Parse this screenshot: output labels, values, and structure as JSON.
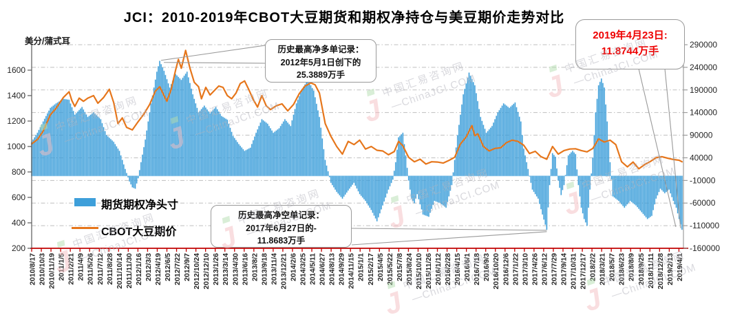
{
  "title": "JCI：2010-2019年CBOT大豆期货和期权净持仓与美豆期价走势对比",
  "axis_unit_label": "美分/蒲式耳",
  "legend": {
    "bars_label": "期货期权净头寸",
    "line_label": "CBOT大豆期价"
  },
  "annotations": {
    "record_long": {
      "line1": "历史最高净多单记录：",
      "line2": "2012年5月1日创下的",
      "line3": "25.3889万手"
    },
    "record_short": {
      "line1": "历史最高净空单记录：",
      "line2": "2017年6月27日的-",
      "line3": "11.8683万手"
    },
    "latest": {
      "line1": "2019年4月23日:",
      "line2": "11.8744万手"
    }
  },
  "watermark": {
    "logo": "J",
    "cn": "中国汇易咨询网",
    "en": "—ChinaJCI.COM"
  },
  "colors": {
    "bar": "#3E9FDA",
    "bar_glow": "rgba(62,159,218,0.32)",
    "line": "#E6761B",
    "grid": "#BFBFBF",
    "axis": "#595959",
    "x_axis_red": "#C00000",
    "tick_text": "#262626",
    "annotation_red": "#EE0000",
    "watermark_gray": "#B3B3BC",
    "watermark_pink": "#F5BFC2",
    "watermark_green": "#B5DEB0"
  },
  "chart_data": {
    "type": "bar+line",
    "title": "JCI：2010-2019年CBOT大豆期货和期权净持仓与美豆期价走势对比",
    "start_date": "2010/8/17",
    "end_date": "2019/4/23",
    "span_days": 3171,
    "x_tick_labels": [
      "2010/8/17",
      "2010/10/3",
      "2010/11/19",
      "2011/1/5",
      "2011/2/21",
      "2011/4/9",
      "2011/5/26",
      "2011/7/12",
      "2011/8/28",
      "2011/10/14",
      "2011/11/30",
      "2012/1/16",
      "2012/3/3",
      "2012/4/19",
      "2012/6/5",
      "2012/7/22",
      "2012/9/7",
      "2012/10/24",
      "2012/12/10",
      "2013/1/26",
      "2013/3/14",
      "2013/4/30",
      "2013/6/16",
      "2013/8/2",
      "2013/9/18",
      "2013/11/4",
      "2013/12/21",
      "2014/2/6",
      "2014/3/25",
      "2014/5/11",
      "2014/6/27",
      "2014/8/13",
      "2014/9/29",
      "2014/11/15",
      "2015/1/1",
      "2015/2/17",
      "2015/4/5",
      "2015/5/22",
      "2015/7/8",
      "2015/8/24",
      "2015/10/10",
      "2015/11/26",
      "2016/1/12",
      "2016/2/28",
      "2016/4/15",
      "2016/6/1",
      "2016/7/18",
      "2016/9/3",
      "2016/10/20",
      "2016/12/6",
      "2017/1/22",
      "2017/3/10",
      "2017/4/26",
      "2017/6/12",
      "2017/7/29",
      "2017/9/14",
      "2017/10/31",
      "2017/12/17",
      "2018/2/2",
      "2018/3/21",
      "2018/5/7",
      "2018/6/23",
      "2018/8/9",
      "2018/9/25",
      "2018/11/11",
      "2018/12/28",
      "2019/2/13",
      "2019/4/1"
    ],
    "x_tick_interval_days": 47,
    "left_axis": {
      "label": "美分/蒲式耳",
      "ticks": [
        1600,
        1400,
        1200,
        1000,
        800,
        600,
        400,
        200
      ],
      "range": [
        200,
        1800
      ]
    },
    "right_axis": {
      "ticks": [
        290000,
        240000,
        190000,
        140000,
        90000,
        40000,
        -10000,
        -60000,
        -110000,
        -160000
      ],
      "range": [
        -160000,
        290000
      ]
    },
    "records": {
      "max_net_long": {
        "date": "2012/5/1",
        "value": 253889,
        "label_wan": "25.3889万手"
      },
      "max_net_short": {
        "date": "2017/6/27",
        "value": -118683,
        "label_wan": "11.8683万手"
      },
      "latest": {
        "date": "2019/4/23",
        "value": -118744,
        "label_wan": "11.8744万手"
      }
    },
    "series": [
      {
        "name": "期货期权净头寸",
        "type": "bar",
        "axis": "right",
        "unit": "手(contracts)",
        "anchors_week_value": [
          [
            0,
            75000
          ],
          [
            4,
            95000
          ],
          [
            8,
            120000
          ],
          [
            13,
            150000
          ],
          [
            17,
            160000
          ],
          [
            22,
            170000
          ],
          [
            26,
            168000
          ],
          [
            30,
            135000
          ],
          [
            35,
            152000
          ],
          [
            39,
            130000
          ],
          [
            43,
            140000
          ],
          [
            48,
            125000
          ],
          [
            52,
            90000
          ],
          [
            57,
            75000
          ],
          [
            61,
            55000
          ],
          [
            65,
            15000
          ],
          [
            68,
            -12000
          ],
          [
            70,
            -25000
          ],
          [
            72,
            -28000
          ],
          [
            74,
            -5000
          ],
          [
            76,
            30000
          ],
          [
            79,
            80000
          ],
          [
            83,
            160000
          ],
          [
            87,
            230000
          ],
          [
            89,
            253889
          ],
          [
            92,
            232000
          ],
          [
            96,
            195000
          ],
          [
            100,
            225000
          ],
          [
            104,
            212000
          ],
          [
            108,
            230000
          ],
          [
            112,
            180000
          ],
          [
            116,
            140000
          ],
          [
            120,
            155000
          ],
          [
            124,
            138000
          ],
          [
            128,
            152000
          ],
          [
            132,
            132000
          ],
          [
            136,
            124000
          ],
          [
            140,
            88000
          ],
          [
            144,
            70000
          ],
          [
            148,
            55000
          ],
          [
            152,
            62000
          ],
          [
            156,
            95000
          ],
          [
            160,
            125000
          ],
          [
            164,
            115000
          ],
          [
            168,
            95000
          ],
          [
            172,
            105000
          ],
          [
            176,
            125000
          ],
          [
            180,
            110000
          ],
          [
            184,
            160000
          ],
          [
            188,
            192000
          ],
          [
            192,
            212000
          ],
          [
            196,
            188000
          ],
          [
            200,
            130000
          ],
          [
            204,
            35000
          ],
          [
            208,
            -15000
          ],
          [
            212,
            -35000
          ],
          [
            216,
            -50000
          ],
          [
            220,
            -32000
          ],
          [
            224,
            -15000
          ],
          [
            228,
            -40000
          ],
          [
            232,
            -55000
          ],
          [
            236,
            -75000
          ],
          [
            240,
            -100000
          ],
          [
            244,
            -65000
          ],
          [
            248,
            -30000
          ],
          [
            251,
            -8000
          ],
          [
            253,
            30000
          ],
          [
            255,
            85000
          ],
          [
            258,
            95000
          ],
          [
            260,
            45000
          ],
          [
            262,
            -10000
          ],
          [
            264,
            -50000
          ],
          [
            266,
            -60000
          ],
          [
            268,
            -40000
          ],
          [
            272,
            -85000
          ],
          [
            276,
            -90000
          ],
          [
            280,
            -55000
          ],
          [
            284,
            -60000
          ],
          [
            288,
            -70000
          ],
          [
            292,
            -20000
          ],
          [
            296,
            90000
          ],
          [
            300,
            180000
          ],
          [
            304,
            228000
          ],
          [
            308,
            200000
          ],
          [
            312,
            130000
          ],
          [
            316,
            95000
          ],
          [
            320,
            110000
          ],
          [
            324,
            140000
          ],
          [
            328,
            160000
          ],
          [
            332,
            150000
          ],
          [
            336,
            162000
          ],
          [
            340,
            120000
          ],
          [
            342,
            60000
          ],
          [
            344,
            30000
          ],
          [
            346,
            0
          ],
          [
            348,
            -30000
          ],
          [
            352,
            -50000
          ],
          [
            355,
            -85000
          ],
          [
            358,
            -118683
          ],
          [
            360,
            -20000
          ],
          [
            362,
            50000
          ],
          [
            364,
            42000
          ],
          [
            366,
            -10000
          ],
          [
            368,
            -42000
          ],
          [
            370,
            -20000
          ],
          [
            373,
            45000
          ],
          [
            376,
            55000
          ],
          [
            378,
            48000
          ],
          [
            380,
            -20000
          ],
          [
            382,
            -70000
          ],
          [
            384,
            -95000
          ],
          [
            386,
            -110000
          ],
          [
            388,
            -30000
          ],
          [
            390,
            40000
          ],
          [
            392,
            140000
          ],
          [
            394,
            200000
          ],
          [
            396,
            215000
          ],
          [
            398,
            195000
          ],
          [
            400,
            120000
          ],
          [
            402,
            30000
          ],
          [
            404,
            -45000
          ],
          [
            408,
            -55000
          ],
          [
            412,
            -70000
          ],
          [
            416,
            -55000
          ],
          [
            420,
            -65000
          ],
          [
            424,
            -80000
          ],
          [
            428,
            -95000
          ],
          [
            431,
            -88000
          ],
          [
            434,
            -50000
          ],
          [
            437,
            -28000
          ],
          [
            440,
            -38000
          ],
          [
            443,
            -30000
          ],
          [
            446,
            -55000
          ],
          [
            448,
            -70000
          ],
          [
            450,
            -95000
          ],
          [
            452,
            -118744
          ]
        ]
      },
      {
        "name": "CBOT大豆期价",
        "type": "line",
        "axis": "left",
        "unit": "美分/蒲式耳",
        "anchors_week_value": [
          [
            0,
            1020
          ],
          [
            4,
            1055
          ],
          [
            8,
            1120
          ],
          [
            13,
            1250
          ],
          [
            17,
            1300
          ],
          [
            22,
            1385
          ],
          [
            26,
            1430
          ],
          [
            28,
            1360
          ],
          [
            30,
            1315
          ],
          [
            33,
            1380
          ],
          [
            36,
            1355
          ],
          [
            39,
            1380
          ],
          [
            43,
            1400
          ],
          [
            46,
            1340
          ],
          [
            50,
            1385
          ],
          [
            54,
            1450
          ],
          [
            57,
            1345
          ],
          [
            60,
            1180
          ],
          [
            63,
            1225
          ],
          [
            66,
            1150
          ],
          [
            70,
            1130
          ],
          [
            74,
            1195
          ],
          [
            78,
            1255
          ],
          [
            82,
            1330
          ],
          [
            86,
            1435
          ],
          [
            89,
            1470
          ],
          [
            92,
            1400
          ],
          [
            94,
            1355
          ],
          [
            97,
            1450
          ],
          [
            100,
            1600
          ],
          [
            102,
            1685
          ],
          [
            104,
            1615
          ],
          [
            107,
            1755
          ],
          [
            110,
            1615
          ],
          [
            113,
            1505
          ],
          [
            116,
            1470
          ],
          [
            118,
            1375
          ],
          [
            121,
            1465
          ],
          [
            124,
            1405
          ],
          [
            127,
            1440
          ],
          [
            130,
            1475
          ],
          [
            133,
            1465
          ],
          [
            136,
            1400
          ],
          [
            139,
            1375
          ],
          [
            142,
            1420
          ],
          [
            145,
            1495
          ],
          [
            148,
            1515
          ],
          [
            151,
            1445
          ],
          [
            154,
            1370
          ],
          [
            157,
            1310
          ],
          [
            160,
            1400
          ],
          [
            163,
            1320
          ],
          [
            166,
            1290
          ],
          [
            170,
            1320
          ],
          [
            174,
            1335
          ],
          [
            178,
            1280
          ],
          [
            182,
            1330
          ],
          [
            186,
            1415
          ],
          [
            190,
            1475
          ],
          [
            194,
            1500
          ],
          [
            197,
            1485
          ],
          [
            200,
            1420
          ],
          [
            204,
            1180
          ],
          [
            208,
            1080
          ],
          [
            212,
            1000
          ],
          [
            216,
            940
          ],
          [
            220,
            1040
          ],
          [
            224,
            1015
          ],
          [
            228,
            1050
          ],
          [
            232,
            980
          ],
          [
            236,
            1000
          ],
          [
            240,
            970
          ],
          [
            244,
            965
          ],
          [
            248,
            935
          ],
          [
            252,
            960
          ],
          [
            255,
            1040
          ],
          [
            258,
            1005
          ],
          [
            262,
            915
          ],
          [
            266,
            880
          ],
          [
            270,
            900
          ],
          [
            274,
            862
          ],
          [
            278,
            880
          ],
          [
            282,
            878
          ],
          [
            286,
            870
          ],
          [
            290,
            890
          ],
          [
            294,
            915
          ],
          [
            298,
            1020
          ],
          [
            302,
            1075
          ],
          [
            306,
            1165
          ],
          [
            308,
            1085
          ],
          [
            310,
            1100
          ],
          [
            314,
            1000
          ],
          [
            318,
            965
          ],
          [
            322,
            985
          ],
          [
            326,
            990
          ],
          [
            330,
            1030
          ],
          [
            334,
            1050
          ],
          [
            338,
            1040
          ],
          [
            342,
            1010
          ],
          [
            346,
            945
          ],
          [
            350,
            962
          ],
          [
            354,
            920
          ],
          [
            358,
            900
          ],
          [
            362,
            1000
          ],
          [
            366,
            940
          ],
          [
            370,
            968
          ],
          [
            374,
            980
          ],
          [
            378,
            982
          ],
          [
            382,
            968
          ],
          [
            386,
            958
          ],
          [
            390,
            985
          ],
          [
            394,
            1060
          ],
          [
            398,
            1035
          ],
          [
            402,
            1050
          ],
          [
            406,
            1015
          ],
          [
            410,
            880
          ],
          [
            414,
            840
          ],
          [
            418,
            878
          ],
          [
            422,
            825
          ],
          [
            426,
            858
          ],
          [
            430,
            882
          ],
          [
            434,
            912
          ],
          [
            438,
            920
          ],
          [
            442,
            908
          ],
          [
            446,
            898
          ],
          [
            450,
            892
          ],
          [
            452,
            880
          ]
        ]
      }
    ],
    "grid": "horizontal-dashed",
    "legend_position": "inside-left"
  }
}
